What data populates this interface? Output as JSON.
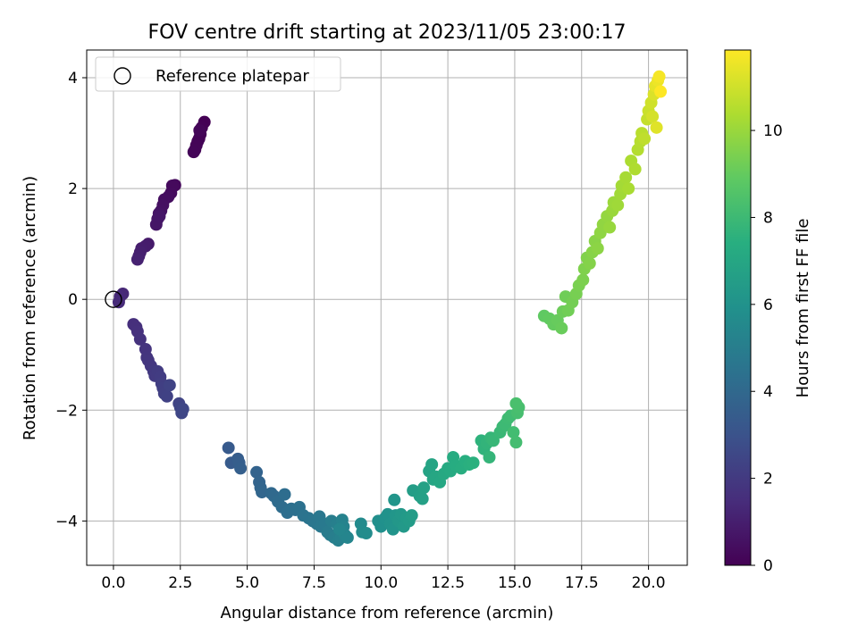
{
  "chart_data": {
    "type": "scatter",
    "title": "FOV centre drift starting at 2023/11/05 23:00:17",
    "xlabel": "Angular distance from reference (arcmin)",
    "ylabel": "Rotation from reference (arcmin)",
    "xlim": [
      -1.0,
      21.45
    ],
    "ylim": [
      -4.8,
      4.5
    ],
    "xticks": [
      0.0,
      2.5,
      5.0,
      7.5,
      10.0,
      12.5,
      15.0,
      17.5,
      20.0
    ],
    "xtick_labels": [
      "0.0",
      "2.5",
      "5.0",
      "7.5",
      "10.0",
      "12.5",
      "15.0",
      "17.5",
      "20.0"
    ],
    "yticks": [
      -4,
      -2,
      0,
      2,
      4
    ],
    "ytick_labels": [
      "−4",
      "−2",
      "0",
      "2",
      "4"
    ],
    "grid": true,
    "legend": {
      "placement": "top-left",
      "entries": [
        "Reference platepar"
      ]
    },
    "reference_point": {
      "x": 0.0,
      "y": 0.0
    },
    "colorbar": {
      "label": "Hours from first FF file",
      "colormap": "viridis",
      "range": [
        0,
        11.85
      ],
      "ticks": [
        0,
        2,
        4,
        6,
        8,
        10
      ],
      "tick_labels": [
        "0",
        "2",
        "4",
        "6",
        "8",
        "10"
      ]
    },
    "points": [
      [
        3.4,
        3.2,
        0.0
      ],
      [
        3.3,
        3.1,
        0.02
      ],
      [
        3.25,
        2.98,
        0.04
      ],
      [
        3.2,
        2.9,
        0.06
      ],
      [
        3.15,
        2.85,
        0.08
      ],
      [
        3.1,
        2.78,
        0.1
      ],
      [
        3.05,
        2.7,
        0.12
      ],
      [
        3.0,
        2.66,
        0.14
      ],
      [
        3.22,
        3.05,
        0.16
      ],
      [
        2.3,
        2.06,
        0.25
      ],
      [
        2.2,
        2.05,
        0.3
      ],
      [
        2.15,
        1.92,
        0.35
      ],
      [
        2.05,
        1.85,
        0.4
      ],
      [
        1.9,
        1.8,
        0.45
      ],
      [
        1.85,
        1.7,
        0.5
      ],
      [
        1.78,
        1.6,
        0.55
      ],
      [
        1.7,
        1.55,
        0.6
      ],
      [
        1.65,
        1.45,
        0.65
      ],
      [
        1.6,
        1.35,
        0.7
      ],
      [
        1.72,
        1.5,
        0.72
      ],
      [
        1.3,
        1.0,
        0.85
      ],
      [
        1.2,
        0.96,
        0.9
      ],
      [
        1.05,
        0.92,
        0.95
      ],
      [
        1.0,
        0.85,
        1.0
      ],
      [
        0.95,
        0.78,
        1.05
      ],
      [
        0.9,
        0.72,
        1.1
      ],
      [
        0.35,
        0.1,
        1.3
      ],
      [
        0.25,
        0.05,
        1.35
      ],
      [
        0.2,
        -0.05,
        1.4
      ],
      [
        0.75,
        -0.45,
        1.55
      ],
      [
        0.85,
        -0.5,
        1.6
      ],
      [
        0.9,
        -0.58,
        1.65
      ],
      [
        1.0,
        -0.72,
        1.7
      ],
      [
        1.2,
        -0.9,
        1.75
      ],
      [
        1.25,
        -1.05,
        1.8
      ],
      [
        1.3,
        -1.1,
        1.85
      ],
      [
        1.4,
        -1.2,
        1.9
      ],
      [
        1.5,
        -1.3,
        1.95
      ],
      [
        1.55,
        -1.38,
        2.0
      ],
      [
        1.65,
        -1.3,
        2.05
      ],
      [
        1.75,
        -1.4,
        2.1
      ],
      [
        1.8,
        -1.52,
        2.15
      ],
      [
        1.85,
        -1.6,
        2.2
      ],
      [
        1.9,
        -1.7,
        2.25
      ],
      [
        2.0,
        -1.75,
        2.3
      ],
      [
        2.1,
        -1.55,
        2.35
      ],
      [
        2.45,
        -1.88,
        2.4
      ],
      [
        2.5,
        -1.95,
        2.45
      ],
      [
        2.55,
        -2.05,
        2.5
      ],
      [
        2.6,
        -1.98,
        2.52
      ],
      [
        4.3,
        -2.68,
        3.35
      ],
      [
        4.4,
        -2.95,
        3.4
      ],
      [
        4.65,
        -2.88,
        3.45
      ],
      [
        4.7,
        -2.95,
        3.5
      ],
      [
        4.75,
        -3.05,
        3.55
      ],
      [
        5.35,
        -3.12,
        3.75
      ],
      [
        5.45,
        -3.3,
        3.8
      ],
      [
        5.5,
        -3.4,
        3.85
      ],
      [
        5.55,
        -3.48,
        3.9
      ],
      [
        5.9,
        -3.5,
        4.0
      ],
      [
        6.0,
        -3.55,
        4.05
      ],
      [
        6.15,
        -3.65,
        4.1
      ],
      [
        6.3,
        -3.75,
        4.15
      ],
      [
        6.4,
        -3.52,
        4.2
      ],
      [
        6.5,
        -3.85,
        4.25
      ],
      [
        6.65,
        -3.78,
        4.3
      ],
      [
        6.8,
        -3.8,
        4.35
      ],
      [
        6.95,
        -3.75,
        4.4
      ],
      [
        7.1,
        -3.9,
        4.5
      ],
      [
        7.3,
        -3.95,
        4.55
      ],
      [
        7.45,
        -4.0,
        4.6
      ],
      [
        7.6,
        -4.05,
        4.65
      ],
      [
        7.7,
        -3.92,
        4.7
      ],
      [
        7.75,
        -4.1,
        4.75
      ],
      [
        7.9,
        -4.05,
        4.8
      ],
      [
        8.0,
        -4.2,
        4.85
      ],
      [
        8.1,
        -4.25,
        4.9
      ],
      [
        8.15,
        -4.0,
        4.95
      ],
      [
        8.25,
        -4.3,
        5.0
      ],
      [
        8.35,
        -4.05,
        5.05
      ],
      [
        8.4,
        -4.35,
        5.1
      ],
      [
        8.5,
        -4.3,
        5.15
      ],
      [
        8.55,
        -3.98,
        5.2
      ],
      [
        8.6,
        -4.1,
        5.25
      ],
      [
        8.65,
        -4.25,
        5.3
      ],
      [
        8.75,
        -4.3,
        5.35
      ],
      [
        8.45,
        -4.15,
        5.4
      ],
      [
        9.25,
        -4.05,
        5.6
      ],
      [
        9.3,
        -4.2,
        5.65
      ],
      [
        9.45,
        -4.22,
        5.7
      ],
      [
        9.9,
        -4.0,
        5.85
      ],
      [
        10.0,
        -4.1,
        5.9
      ],
      [
        10.15,
        -3.95,
        5.95
      ],
      [
        10.25,
        -3.88,
        6.0
      ],
      [
        10.35,
        -4.05,
        6.05
      ],
      [
        10.45,
        -4.15,
        6.1
      ],
      [
        10.5,
        -3.62,
        6.15
      ],
      [
        10.55,
        -3.9,
        6.2
      ],
      [
        10.65,
        -4.0,
        6.25
      ],
      [
        10.75,
        -3.88,
        6.3
      ],
      [
        10.85,
        -4.1,
        6.35
      ],
      [
        10.95,
        -3.95,
        6.4
      ],
      [
        11.05,
        -4.0,
        6.45
      ],
      [
        11.15,
        -3.9,
        6.5
      ],
      [
        11.2,
        -3.45,
        6.55
      ],
      [
        11.45,
        -3.55,
        6.65
      ],
      [
        11.55,
        -3.6,
        6.7
      ],
      [
        11.6,
        -3.4,
        6.75
      ],
      [
        11.8,
        -3.1,
        6.85
      ],
      [
        11.9,
        -2.98,
        6.9
      ],
      [
        11.95,
        -3.25,
        6.95
      ],
      [
        12.05,
        -3.2,
        7.0
      ],
      [
        12.2,
        -3.3,
        7.05
      ],
      [
        12.35,
        -3.15,
        7.1
      ],
      [
        12.5,
        -3.05,
        7.15
      ],
      [
        12.6,
        -3.1,
        7.2
      ],
      [
        12.7,
        -2.85,
        7.25
      ],
      [
        12.8,
        -3.0,
        7.3
      ],
      [
        13.0,
        -3.05,
        7.35
      ],
      [
        13.15,
        -2.92,
        7.4
      ],
      [
        13.3,
        -2.98,
        7.45
      ],
      [
        13.45,
        -2.95,
        7.5
      ],
      [
        13.75,
        -2.55,
        7.6
      ],
      [
        13.85,
        -2.7,
        7.65
      ],
      [
        13.95,
        -2.6,
        7.7
      ],
      [
        14.05,
        -2.85,
        7.75
      ],
      [
        14.1,
        -2.5,
        7.8
      ],
      [
        14.2,
        -2.55,
        7.85
      ],
      [
        14.45,
        -2.4,
        7.9
      ],
      [
        14.55,
        -2.3,
        7.95
      ],
      [
        14.65,
        -2.25,
        8.0
      ],
      [
        14.75,
        -2.15,
        8.05
      ],
      [
        14.85,
        -2.1,
        8.1
      ],
      [
        14.95,
        -2.4,
        8.15
      ],
      [
        15.05,
        -2.58,
        8.2
      ],
      [
        15.1,
        -2.05,
        8.25
      ],
      [
        15.15,
        -1.95,
        8.3
      ],
      [
        15.05,
        -1.88,
        8.35
      ],
      [
        16.1,
        -0.3,
        8.9
      ],
      [
        16.3,
        -0.35,
        8.95
      ],
      [
        16.45,
        -0.45,
        9.0
      ],
      [
        16.6,
        -0.38,
        9.05
      ],
      [
        16.75,
        -0.52,
        9.1
      ],
      [
        16.8,
        -0.22,
        9.15
      ],
      [
        16.9,
        0.05,
        9.2
      ],
      [
        17.0,
        -0.2,
        9.25
      ],
      [
        17.15,
        -0.05,
        9.3
      ],
      [
        17.3,
        0.1,
        9.35
      ],
      [
        17.4,
        0.25,
        9.4
      ],
      [
        17.55,
        0.35,
        9.45
      ],
      [
        17.6,
        0.55,
        9.5
      ],
      [
        17.7,
        0.75,
        9.55
      ],
      [
        17.8,
        0.65,
        9.6
      ],
      [
        17.9,
        0.85,
        9.65
      ],
      [
        18.0,
        1.05,
        9.7
      ],
      [
        18.1,
        0.92,
        9.75
      ],
      [
        18.2,
        1.2,
        9.8
      ],
      [
        18.3,
        1.35,
        9.85
      ],
      [
        18.45,
        1.5,
        9.9
      ],
      [
        18.55,
        1.3,
        9.95
      ],
      [
        18.65,
        1.6,
        10.0
      ],
      [
        18.7,
        1.75,
        10.05
      ],
      [
        18.85,
        1.7,
        10.1
      ],
      [
        18.95,
        1.9,
        10.15
      ],
      [
        19.0,
        2.05,
        10.2
      ],
      [
        19.15,
        2.2,
        10.25
      ],
      [
        19.25,
        2.0,
        10.3
      ],
      [
        19.35,
        2.5,
        10.35
      ],
      [
        19.5,
        2.35,
        10.4
      ],
      [
        19.6,
        2.7,
        10.5
      ],
      [
        19.7,
        2.85,
        10.55
      ],
      [
        19.75,
        3.0,
        10.6
      ],
      [
        19.85,
        2.9,
        10.7
      ],
      [
        19.95,
        3.25,
        10.8
      ],
      [
        20.0,
        3.4,
        10.9
      ],
      [
        20.1,
        3.55,
        11.0
      ],
      [
        20.15,
        3.3,
        11.1
      ],
      [
        20.2,
        3.7,
        11.2
      ],
      [
        20.3,
        3.1,
        11.3
      ],
      [
        20.25,
        3.85,
        11.4
      ],
      [
        20.35,
        3.95,
        11.55
      ],
      [
        20.4,
        4.02,
        11.7
      ],
      [
        20.45,
        3.75,
        11.85
      ]
    ]
  }
}
